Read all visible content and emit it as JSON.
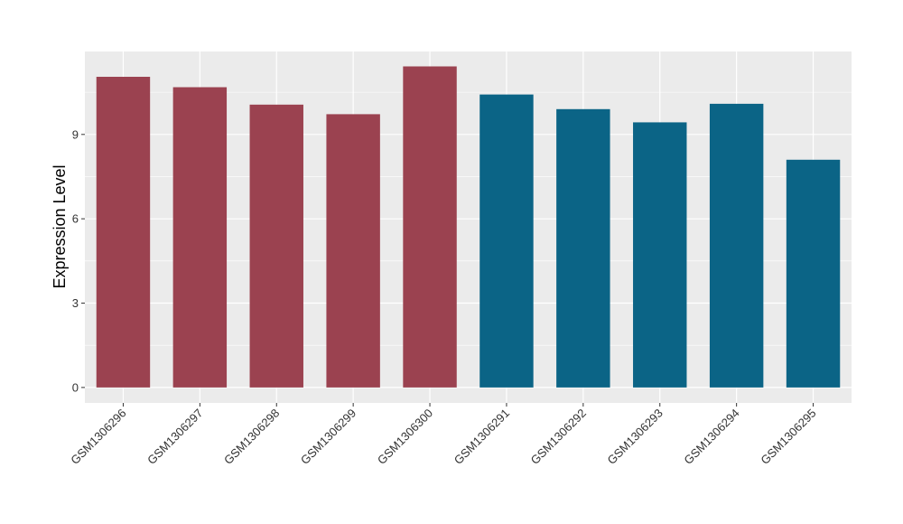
{
  "chart_data": {
    "type": "bar",
    "title": "",
    "xlabel": "",
    "ylabel": "Expression Level",
    "categories": [
      "GSM1306296",
      "GSM1306297",
      "GSM1306298",
      "GSM1306299",
      "GSM1306300",
      "GSM1306291",
      "GSM1306292",
      "GSM1306293",
      "GSM1306294",
      "GSM1306295"
    ],
    "values": [
      11.05,
      10.68,
      10.06,
      9.72,
      11.42,
      10.42,
      9.9,
      9.43,
      10.09,
      8.1
    ],
    "colors": [
      "#9b4250",
      "#9b4250",
      "#9b4250",
      "#9b4250",
      "#9b4250",
      "#0b6486",
      "#0b6486",
      "#0b6486",
      "#0b6486",
      "#0b6486"
    ],
    "yticks": [
      0,
      3,
      6,
      9
    ],
    "ylim": [
      -0.55,
      11.95
    ],
    "grid": true,
    "legend": "none",
    "panel_background": "#ebebeb",
    "gridline_color": "#ffffff"
  }
}
